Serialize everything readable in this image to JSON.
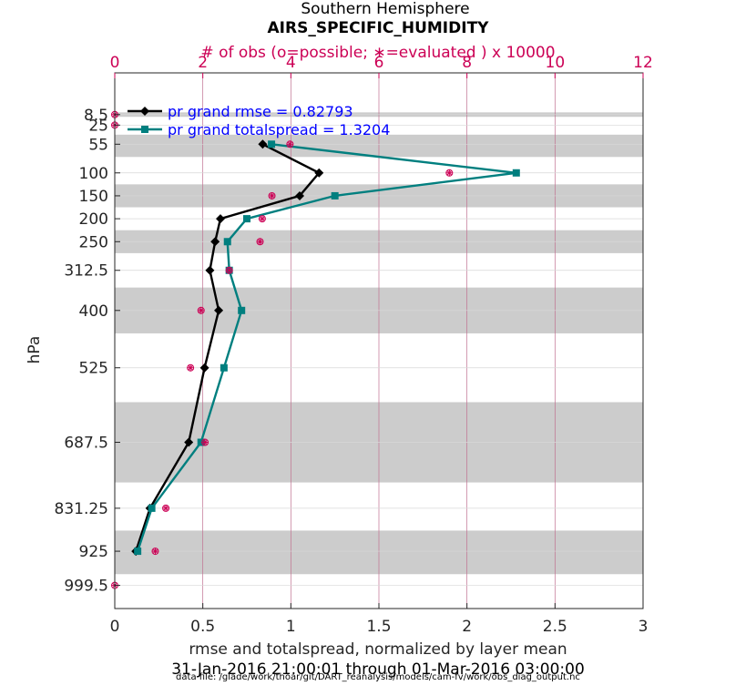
{
  "chart_data": {
    "type": "line",
    "title_line1": "Southern Hemisphere",
    "title_line2": "AIRS_SPECIFIC_HUMIDITY",
    "top_axis_label": "# of obs (o=possible; ∗=evaluated ) x 10000",
    "xlabel": "rmse and totalspread, normalized by layer mean",
    "ylabel": "hPa",
    "date_range": "31-Jan-2016 21:00:01 through 01-Mar-2016 03:00:00",
    "data_file": "data file: /glade/work/thoar/git/DART_reanalysis/models/cam-fv/work/obs_diag_output.nc",
    "xlim": [
      0,
      3
    ],
    "xticks": [
      0,
      0.5,
      1,
      1.5,
      2,
      2.5,
      3
    ],
    "xtick_labels": [
      "0",
      "0.5",
      "1",
      "1.5",
      "2",
      "2.5",
      "3"
    ],
    "top_xlim": [
      0,
      12
    ],
    "top_xticks": [
      0,
      2,
      4,
      6,
      8,
      10,
      12
    ],
    "top_xtick_labels": [
      "0",
      "2",
      "4",
      "6",
      "8",
      "10",
      "12"
    ],
    "ylim": [
      8.5,
      1050
    ],
    "levels": [
      8.5,
      25,
      55,
      100,
      150,
      200,
      250,
      312.5,
      400,
      525,
      687.5,
      831.25,
      925,
      999.5
    ],
    "level_labels": [
      "8.5",
      "25",
      "55",
      "100",
      "150",
      "200",
      "250",
      "312.5",
      "400",
      "525",
      "687.5",
      "831.25",
      "925",
      "999.5"
    ],
    "bands": [
      [
        5,
        12
      ],
      [
        40,
        75
      ],
      [
        125,
        175
      ],
      [
        225,
        275
      ],
      [
        350,
        450
      ],
      [
        600,
        775
      ],
      [
        880,
        975
      ]
    ],
    "series": [
      {
        "name": "pr grand rmse",
        "legend": "pr grand rmse = 0.82793",
        "color": "#000000",
        "marker": "diamond",
        "levels": [
          55,
          100,
          150,
          200,
          250,
          312.5,
          400,
          525,
          687.5,
          831.25,
          925
        ],
        "values": [
          0.84,
          1.16,
          1.05,
          0.6,
          0.57,
          0.54,
          0.59,
          0.51,
          0.42,
          0.2,
          0.12
        ]
      },
      {
        "name": "pr grand totalspread",
        "legend": "pr grand totalspread = 1.3204",
        "color": "#007f7f",
        "marker": "square",
        "levels": [
          55,
          100,
          150,
          200,
          250,
          312.5,
          400,
          525,
          687.5,
          831.25,
          925
        ],
        "values": [
          0.89,
          2.28,
          1.25,
          0.75,
          0.64,
          0.65,
          0.72,
          0.62,
          0.49,
          0.21,
          0.13
        ]
      }
    ],
    "obs_counts": {
      "levels": [
        8.5,
        25,
        55,
        100,
        150,
        200,
        250,
        312.5,
        400,
        525,
        687.5,
        831.25,
        925,
        999.5
      ],
      "possible": [
        0,
        0,
        3.98,
        7.6,
        3.57,
        3.35,
        3.3,
        2.6,
        1.96,
        1.72,
        2.05,
        1.16,
        0.92,
        0
      ],
      "evaluated": [
        0,
        0,
        3.98,
        7.6,
        3.57,
        3.35,
        3.3,
        2.6,
        1.96,
        1.72,
        2.05,
        1.16,
        0.92,
        0
      ]
    },
    "colors": {
      "obs": "#cc0055",
      "legend_text": "#0000ff",
      "band": "#cccccc",
      "top_grid": "#c07090",
      "grid": "#d8d8d8"
    }
  }
}
